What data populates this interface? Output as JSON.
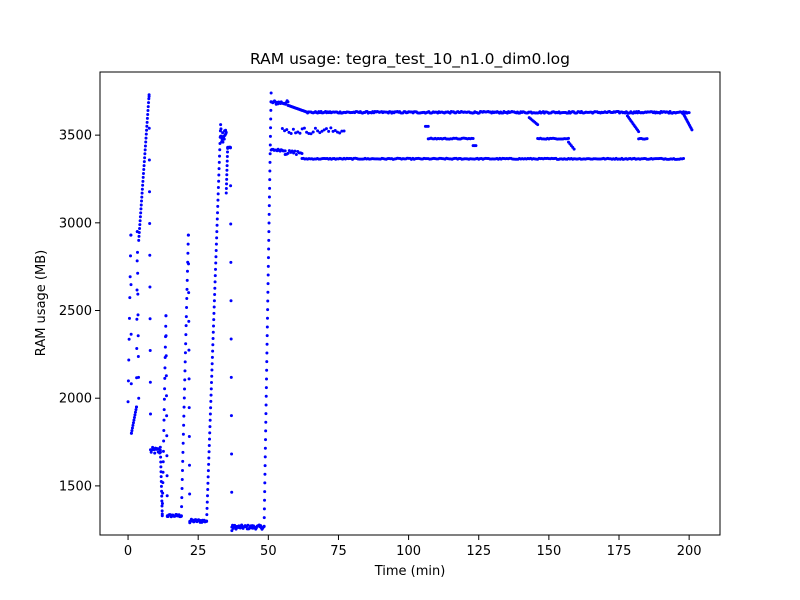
{
  "chart_data": {
    "type": "scatter",
    "title": "RAM usage: tegra_test_10_n1.0_dim0.log",
    "xlabel": "Time (min)",
    "ylabel": "RAM usage (MB)",
    "xlim": [
      -10,
      211
    ],
    "ylim": [
      1220,
      3860
    ],
    "xticks": [
      0,
      25,
      50,
      75,
      100,
      125,
      150,
      175,
      200
    ],
    "yticks": [
      1500,
      2000,
      2500,
      3000,
      3500
    ],
    "grid": false,
    "legend": "none",
    "marker_color": "#0000ff",
    "series": [
      {
        "name": "",
        "segments": [
          {
            "kind": "ramp",
            "x0": 0.0,
            "x1": 1.0,
            "y0": 1980,
            "y1": 2930,
            "step": 0.12
          },
          {
            "kind": "ramp",
            "x0": 1.0,
            "x1": 1.2,
            "y0": 2930,
            "y1": 1800,
            "step": 0.05
          },
          {
            "kind": "ramp",
            "x0": 1.2,
            "x1": 3.0,
            "y0": 1800,
            "y1": 1950,
            "step": 0.18
          },
          {
            "kind": "ramp",
            "x0": 3.0,
            "x1": 3.3,
            "y0": 1950,
            "y1": 2950,
            "step": 0.05
          },
          {
            "kind": "ramp",
            "x0": 3.3,
            "x1": 3.8,
            "y0": 2950,
            "y1": 2000,
            "step": 0.06
          },
          {
            "kind": "ramp",
            "x0": 3.8,
            "x1": 7.5,
            "y0": 2900,
            "y1": 3730,
            "step": 0.1
          },
          {
            "kind": "ramp",
            "x0": 7.5,
            "x1": 8.0,
            "y0": 3720,
            "y1": 1910,
            "step": 0.05
          },
          {
            "kind": "flat",
            "x0": 8.0,
            "x1": 11.5,
            "y": 1700,
            "jitter": 20,
            "step": 0.25
          },
          {
            "kind": "ramp",
            "x0": 11.5,
            "x1": 12.2,
            "y0": 1720,
            "y1": 1330,
            "step": 0.05
          },
          {
            "kind": "ramp",
            "x0": 12.2,
            "x1": 13.5,
            "y0": 1340,
            "y1": 2470,
            "step": 0.07
          },
          {
            "kind": "ramp",
            "x0": 13.5,
            "x1": 14.0,
            "y0": 2470,
            "y1": 1330,
            "step": 0.05
          },
          {
            "kind": "flat",
            "x0": 14.0,
            "x1": 19.0,
            "y": 1330,
            "jitter": 8,
            "step": 0.28
          },
          {
            "kind": "ramp",
            "x0": 19.0,
            "x1": 21.5,
            "y0": 1330,
            "y1": 2930,
            "step": 0.08
          },
          {
            "kind": "ramp",
            "x0": 21.5,
            "x1": 22.0,
            "y0": 2930,
            "y1": 1290,
            "step": 0.05
          },
          {
            "kind": "flat",
            "x0": 22.0,
            "x1": 28.0,
            "y": 1300,
            "jitter": 10,
            "step": 0.28
          },
          {
            "kind": "ramp",
            "x0": 28.0,
            "x1": 33.0,
            "y0": 1300,
            "y1": 3560,
            "step": 0.08
          },
          {
            "kind": "flat",
            "x0": 33.0,
            "x1": 35.0,
            "y": 3500,
            "jitter": 40,
            "step": 0.12
          },
          {
            "kind": "ramp",
            "x0": 35.0,
            "x1": 35.5,
            "y0": 3170,
            "y1": 3430,
            "step": 0.05
          },
          {
            "kind": "flat",
            "x0": 35.5,
            "x1": 36.5,
            "y": 3430,
            "jitter": 6,
            "step": 0.2
          },
          {
            "kind": "ramp",
            "x0": 36.5,
            "x1": 37.0,
            "y0": 3430,
            "y1": 1245,
            "step": 0.05
          },
          {
            "kind": "flat",
            "x0": 37.0,
            "x1": 48.5,
            "y": 1265,
            "jitter": 12,
            "step": 0.25
          },
          {
            "kind": "ramp",
            "x0": 48.5,
            "x1": 51.0,
            "y0": 1270,
            "y1": 3740,
            "step": 0.05
          },
          {
            "kind": "flat",
            "x0": 51.0,
            "x1": 57.0,
            "y": 3685,
            "jitter": 12,
            "step": 0.3
          },
          {
            "kind": "flat",
            "x0": 51.0,
            "x1": 56.0,
            "y": 3415,
            "jitter": 6,
            "step": 0.35
          },
          {
            "kind": "ramp",
            "x0": 57.0,
            "x1": 64.0,
            "y0": 3670,
            "y1": 3630,
            "step": 0.3
          },
          {
            "kind": "flat",
            "x0": 64.0,
            "x1": 200.0,
            "y": 3630,
            "jitter": 5,
            "step": 0.4
          },
          {
            "kind": "flat",
            "x0": 56.0,
            "x1": 62.0,
            "y": 3400,
            "jitter": 12,
            "step": 0.5
          },
          {
            "kind": "flat",
            "x0": 62.0,
            "x1": 198.0,
            "y": 3365,
            "jitter": 3,
            "step": 0.5
          },
          {
            "kind": "flat",
            "x0": 55.0,
            "x1": 77.0,
            "y": 3525,
            "jitter": 18,
            "step": 0.8
          },
          {
            "kind": "flat",
            "x0": 106.0,
            "x1": 107.0,
            "y": 3550,
            "jitter": 0,
            "step": 0.5
          },
          {
            "kind": "flat",
            "x0": 107.0,
            "x1": 123.0,
            "y": 3480,
            "jitter": 3,
            "step": 0.5
          },
          {
            "kind": "flat",
            "x0": 123.0,
            "x1": 124.0,
            "y": 3440,
            "jitter": 0,
            "step": 0.5
          },
          {
            "kind": "ramp",
            "x0": 143.0,
            "x1": 146.0,
            "y0": 3600,
            "y1": 3560,
            "step": 0.5
          },
          {
            "kind": "flat",
            "x0": 146.0,
            "x1": 157.0,
            "y": 3480,
            "jitter": 3,
            "step": 0.5
          },
          {
            "kind": "ramp",
            "x0": 157.0,
            "x1": 159.0,
            "y0": 3460,
            "y1": 3420,
            "step": 0.5
          },
          {
            "kind": "ramp",
            "x0": 178.0,
            "x1": 182.0,
            "y0": 3610,
            "y1": 3520,
            "step": 0.4
          },
          {
            "kind": "flat",
            "x0": 182.0,
            "x1": 185.0,
            "y": 3480,
            "jitter": 3,
            "step": 0.5
          },
          {
            "kind": "ramp",
            "x0": 198.0,
            "x1": 201.0,
            "y0": 3620,
            "y1": 3530,
            "step": 0.3
          }
        ]
      }
    ]
  }
}
